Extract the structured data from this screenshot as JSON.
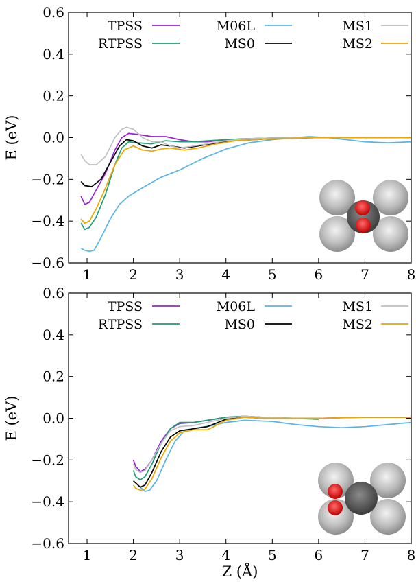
{
  "chart_data": [
    {
      "type": "line",
      "ylabel": "E (eV)",
      "xlabel": "",
      "xlim": [
        0.6,
        8.0
      ],
      "ylim": [
        -0.6,
        0.6
      ],
      "x_ticks": [
        "1",
        "2",
        "3",
        "4",
        "5",
        "6",
        "7",
        "8"
      ],
      "y_ticks": [
        "−0.6",
        "−0.4",
        "−0.2",
        "0.0",
        "0.2",
        "0.4",
        "0.6"
      ],
      "legend_position": "top",
      "inset": "O2 molecule above a square of four metal atoms",
      "series": [
        {
          "name": "TPSS",
          "color": "#9b20d4",
          "points": [
            [
              0.87,
              -0.28
            ],
            [
              0.95,
              -0.32
            ],
            [
              1.05,
              -0.31
            ],
            [
              1.2,
              -0.25
            ],
            [
              1.4,
              -0.17
            ],
            [
              1.6,
              -0.06
            ],
            [
              1.75,
              0.0
            ],
            [
              1.9,
              0.02
            ],
            [
              2.1,
              0.015
            ],
            [
              2.4,
              0.005
            ],
            [
              2.7,
              0.005
            ],
            [
              3.0,
              -0.01
            ],
            [
              3.3,
              -0.02
            ],
            [
              3.6,
              -0.02
            ],
            [
              4.0,
              -0.01
            ],
            [
              4.5,
              -0.005
            ],
            [
              5.0,
              -0.002
            ],
            [
              6.0,
              0.0
            ],
            [
              7.0,
              0.0
            ],
            [
              8.0,
              0.0
            ]
          ]
        },
        {
          "name": "RTPSS",
          "color": "#1a9e74",
          "points": [
            [
              0.87,
              -0.41
            ],
            [
              0.95,
              -0.44
            ],
            [
              1.05,
              -0.43
            ],
            [
              1.2,
              -0.38
            ],
            [
              1.4,
              -0.27
            ],
            [
              1.6,
              -0.13
            ],
            [
              1.75,
              -0.05
            ],
            [
              1.9,
              -0.02
            ],
            [
              2.1,
              -0.025
            ],
            [
              2.4,
              -0.03
            ],
            [
              2.7,
              -0.015
            ],
            [
              3.0,
              -0.02
            ],
            [
              3.3,
              -0.02
            ],
            [
              3.6,
              -0.015
            ],
            [
              4.0,
              -0.01
            ],
            [
              4.5,
              -0.005
            ],
            [
              5.0,
              -0.002
            ],
            [
              6.0,
              0.0
            ],
            [
              7.0,
              0.0
            ],
            [
              8.0,
              0.0
            ]
          ]
        },
        {
          "name": "M06L",
          "color": "#56b4e9",
          "points": [
            [
              0.87,
              -0.53
            ],
            [
              0.95,
              -0.54
            ],
            [
              1.05,
              -0.545
            ],
            [
              1.15,
              -0.54
            ],
            [
              1.3,
              -0.48
            ],
            [
              1.5,
              -0.39
            ],
            [
              1.7,
              -0.32
            ],
            [
              1.9,
              -0.28
            ],
            [
              2.2,
              -0.24
            ],
            [
              2.6,
              -0.19
            ],
            [
              3.0,
              -0.155
            ],
            [
              3.5,
              -0.1
            ],
            [
              4.0,
              -0.055
            ],
            [
              4.5,
              -0.025
            ],
            [
              5.0,
              -0.01
            ],
            [
              5.5,
              0.0
            ],
            [
              5.8,
              0.005
            ],
            [
              6.2,
              0.0
            ],
            [
              6.6,
              -0.01
            ],
            [
              7.0,
              -0.02
            ],
            [
              7.5,
              -0.025
            ],
            [
              8.0,
              -0.02
            ]
          ]
        },
        {
          "name": "MS0",
          "color": "#000000",
          "points": [
            [
              0.87,
              -0.21
            ],
            [
              0.95,
              -0.23
            ],
            [
              1.1,
              -0.235
            ],
            [
              1.3,
              -0.2
            ],
            [
              1.5,
              -0.12
            ],
            [
              1.7,
              -0.04
            ],
            [
              1.85,
              -0.01
            ],
            [
              2.0,
              -0.015
            ],
            [
              2.2,
              -0.04
            ],
            [
              2.4,
              -0.05
            ],
            [
              2.6,
              -0.035
            ],
            [
              2.8,
              -0.04
            ],
            [
              3.1,
              -0.05
            ],
            [
              3.4,
              -0.04
            ],
            [
              3.8,
              -0.025
            ],
            [
              4.2,
              -0.015
            ],
            [
              5.0,
              -0.005
            ],
            [
              6.0,
              0.0
            ],
            [
              7.0,
              0.0
            ],
            [
              8.0,
              0.0
            ]
          ]
        },
        {
          "name": "MS1",
          "color": "#c0c0c0",
          "points": [
            [
              0.87,
              -0.08
            ],
            [
              0.95,
              -0.11
            ],
            [
              1.05,
              -0.13
            ],
            [
              1.2,
              -0.13
            ],
            [
              1.4,
              -0.09
            ],
            [
              1.6,
              0.0
            ],
            [
              1.75,
              0.04
            ],
            [
              1.85,
              0.05
            ],
            [
              2.0,
              0.04
            ],
            [
              2.2,
              0.0
            ],
            [
              2.4,
              -0.02
            ],
            [
              2.6,
              -0.02
            ],
            [
              2.8,
              -0.04
            ],
            [
              3.0,
              -0.05
            ],
            [
              3.3,
              -0.04
            ],
            [
              3.6,
              -0.03
            ],
            [
              4.0,
              -0.015
            ],
            [
              4.5,
              -0.005
            ],
            [
              5.0,
              -0.002
            ],
            [
              6.0,
              0.0
            ],
            [
              7.0,
              0.0
            ],
            [
              8.0,
              0.0
            ]
          ]
        },
        {
          "name": "MS2",
          "color": "#f0a500",
          "points": [
            [
              0.87,
              -0.39
            ],
            [
              0.95,
              -0.41
            ],
            [
              1.05,
              -0.4
            ],
            [
              1.2,
              -0.34
            ],
            [
              1.4,
              -0.24
            ],
            [
              1.6,
              -0.13
            ],
            [
              1.8,
              -0.06
            ],
            [
              2.0,
              -0.04
            ],
            [
              2.2,
              -0.06
            ],
            [
              2.4,
              -0.065
            ],
            [
              2.6,
              -0.055
            ],
            [
              2.8,
              -0.05
            ],
            [
              3.1,
              -0.06
            ],
            [
              3.4,
              -0.05
            ],
            [
              3.8,
              -0.03
            ],
            [
              4.2,
              -0.015
            ],
            [
              5.0,
              -0.005
            ],
            [
              6.0,
              0.0
            ],
            [
              7.0,
              0.0
            ],
            [
              8.0,
              0.0
            ]
          ]
        }
      ]
    },
    {
      "type": "line",
      "ylabel": "E (eV)",
      "xlabel": "Z (Å)",
      "xlim": [
        0.6,
        8.0
      ],
      "ylim": [
        -0.6,
        0.6
      ],
      "x_ticks": [
        "1",
        "2",
        "3",
        "4",
        "5",
        "6",
        "7",
        "8"
      ],
      "y_ticks": [
        "−0.6",
        "−0.4",
        "−0.2",
        "0.0",
        "0.2",
        "0.4",
        "0.6"
      ],
      "legend_position": "top",
      "inset": "O2 molecule tilted near a square of four metal atoms",
      "series": [
        {
          "name": "TPSS",
          "color": "#9b20d4",
          "points": [
            [
              2.0,
              -0.2
            ],
            [
              2.05,
              -0.23
            ],
            [
              2.15,
              -0.255
            ],
            [
              2.25,
              -0.245
            ],
            [
              2.4,
              -0.2
            ],
            [
              2.6,
              -0.11
            ],
            [
              2.8,
              -0.05
            ],
            [
              3.0,
              -0.025
            ],
            [
              3.3,
              -0.02
            ],
            [
              3.6,
              -0.01
            ],
            [
              4.0,
              0.005
            ],
            [
              4.4,
              0.01
            ],
            [
              4.8,
              0.005
            ],
            [
              5.2,
              0.0
            ],
            [
              6.0,
              0.0
            ],
            [
              7.0,
              0.005
            ],
            [
              8.0,
              0.005
            ]
          ]
        },
        {
          "name": "RTPSS",
          "color": "#1a9e74",
          "points": [
            [
              2.0,
              -0.25
            ],
            [
              2.05,
              -0.28
            ],
            [
              2.15,
              -0.295
            ],
            [
              2.25,
              -0.28
            ],
            [
              2.4,
              -0.22
            ],
            [
              2.6,
              -0.12
            ],
            [
              2.8,
              -0.05
            ],
            [
              3.0,
              -0.02
            ],
            [
              3.3,
              -0.02
            ],
            [
              3.6,
              -0.01
            ],
            [
              4.0,
              0.005
            ],
            [
              4.4,
              0.01
            ],
            [
              4.8,
              0.005
            ],
            [
              5.5,
              0.0
            ],
            [
              6.0,
              -0.005
            ]
          ]
        },
        {
          "name": "M06L",
          "color": "#56b4e9",
          "points": [
            [
              2.15,
              -0.33
            ],
            [
              2.25,
              -0.35
            ],
            [
              2.35,
              -0.345
            ],
            [
              2.5,
              -0.3
            ],
            [
              2.7,
              -0.2
            ],
            [
              2.9,
              -0.11
            ],
            [
              3.1,
              -0.06
            ],
            [
              3.4,
              -0.045
            ],
            [
              3.7,
              -0.035
            ],
            [
              4.0,
              -0.02
            ],
            [
              4.4,
              -0.01
            ],
            [
              5.0,
              -0.015
            ],
            [
              5.5,
              -0.03
            ],
            [
              6.0,
              -0.04
            ],
            [
              6.5,
              -0.045
            ],
            [
              7.0,
              -0.04
            ],
            [
              7.5,
              -0.03
            ],
            [
              8.0,
              -0.02
            ]
          ]
        },
        {
          "name": "MS0",
          "color": "#000000",
          "points": [
            [
              2.0,
              -0.3
            ],
            [
              2.05,
              -0.31
            ],
            [
              2.15,
              -0.33
            ],
            [
              2.25,
              -0.32
            ],
            [
              2.4,
              -0.26
            ],
            [
              2.6,
              -0.16
            ],
            [
              2.8,
              -0.09
            ],
            [
              3.0,
              -0.06
            ],
            [
              3.3,
              -0.05
            ],
            [
              3.6,
              -0.04
            ],
            [
              4.0,
              -0.005
            ],
            [
              4.4,
              0.005
            ],
            [
              4.8,
              0.0
            ],
            [
              5.5,
              0.0
            ],
            [
              6.0,
              0.0
            ]
          ]
        },
        {
          "name": "MS1",
          "color": "#c0c0c0",
          "points": [
            [
              2.0,
              -0.22
            ],
            [
              2.05,
              -0.245
            ],
            [
              2.15,
              -0.26
            ],
            [
              2.25,
              -0.25
            ],
            [
              2.4,
              -0.2
            ],
            [
              2.6,
              -0.12
            ],
            [
              2.8,
              -0.06
            ],
            [
              3.0,
              -0.04
            ],
            [
              3.3,
              -0.035
            ],
            [
              3.6,
              -0.02
            ],
            [
              4.0,
              0.0
            ],
            [
              4.4,
              0.01
            ],
            [
              4.8,
              0.005
            ],
            [
              5.5,
              0.0
            ],
            [
              6.0,
              0.0
            ]
          ]
        },
        {
          "name": "MS2",
          "color": "#f0a500",
          "points": [
            [
              2.0,
              -0.32
            ],
            [
              2.05,
              -0.335
            ],
            [
              2.15,
              -0.345
            ],
            [
              2.25,
              -0.34
            ],
            [
              2.4,
              -0.29
            ],
            [
              2.6,
              -0.19
            ],
            [
              2.8,
              -0.11
            ],
            [
              3.0,
              -0.07
            ],
            [
              3.3,
              -0.055
            ],
            [
              3.6,
              -0.055
            ],
            [
              4.0,
              -0.01
            ],
            [
              4.4,
              0.005
            ],
            [
              4.8,
              0.0
            ],
            [
              5.5,
              0.0
            ],
            [
              6.0,
              0.0
            ],
            [
              7.0,
              0.005
            ],
            [
              8.0,
              0.005
            ]
          ]
        }
      ]
    }
  ]
}
